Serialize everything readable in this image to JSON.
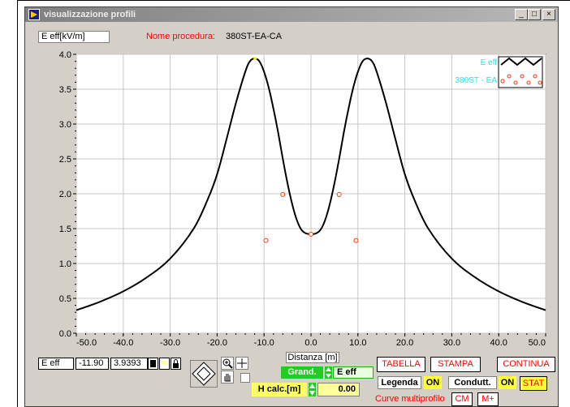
{
  "window": {
    "title": "visualizzazione profili",
    "min_label": "_",
    "max_label": "□",
    "close_label": "×"
  },
  "header": {
    "y_unit_label": "E eff[kV/m]",
    "procedure_label": "Nome procedura:",
    "procedure_value": "380ST-EA-CA"
  },
  "legend": {
    "entries": [
      "E eff",
      "380ST - EA"
    ]
  },
  "chart_data": {
    "type": "scatter",
    "xlabel": "Distanza [m]",
    "ylabel": "E eff[kV/m]",
    "xlim": [
      -50,
      50
    ],
    "ylim": [
      0,
      4
    ],
    "x_ticks": [
      "-50.0",
      "-40.0",
      "-30.0",
      "-20.0",
      "-10.0",
      "0.0",
      "10.0",
      "20.0",
      "30.0",
      "40.0",
      "50.0"
    ],
    "y_ticks": [
      "0.0",
      "0.5",
      "1.0",
      "1.5",
      "2.0",
      "2.5",
      "3.0",
      "3.5",
      "4.0"
    ],
    "grid": true,
    "series": [
      {
        "name": "E eff",
        "style": "line",
        "color": "#000000",
        "x": [
          -50,
          -45,
          -40,
          -35,
          -30,
          -25,
          -22,
          -20,
          -18,
          -16,
          -14,
          -13,
          -12,
          -11,
          -10,
          -9,
          -8,
          -7,
          -6,
          -5,
          -4,
          -3,
          -2,
          -1,
          0,
          1,
          2,
          3,
          4,
          5,
          6,
          7,
          8,
          9,
          10,
          11,
          12,
          13,
          14,
          16,
          18,
          20,
          22,
          25,
          30,
          35,
          40,
          45,
          50
        ],
        "y": [
          0.33,
          0.45,
          0.6,
          0.8,
          1.07,
          1.5,
          1.92,
          2.28,
          2.78,
          3.3,
          3.75,
          3.9,
          3.94,
          3.9,
          3.75,
          3.52,
          3.22,
          2.88,
          2.5,
          2.15,
          1.85,
          1.62,
          1.48,
          1.43,
          1.42,
          1.43,
          1.48,
          1.62,
          1.85,
          2.15,
          2.5,
          2.88,
          3.22,
          3.52,
          3.75,
          3.9,
          3.94,
          3.9,
          3.75,
          3.3,
          2.78,
          2.28,
          1.92,
          1.5,
          1.07,
          0.8,
          0.6,
          0.45,
          0.33
        ]
      },
      {
        "name": "380ST - EA",
        "style": "markers",
        "color": "#ff3300",
        "x": [
          -6.0,
          6.0,
          -9.6,
          9.6,
          0.0
        ],
        "y": [
          1.99,
          1.99,
          1.33,
          1.33,
          1.42
        ]
      }
    ],
    "cursor_point": {
      "x": -11.9,
      "y": 3.9393
    }
  },
  "cursor": {
    "name": "E eff",
    "x": "-11.90",
    "y": "3.9393"
  },
  "controls": {
    "distance_label": "Distanza [m]",
    "grand_label": "Grand.",
    "grand_value": "E eff",
    "hcalc_label": "H calc.[m]",
    "hcalc_value": "0.00"
  },
  "buttons": {
    "tabella": "TABELLA",
    "stampa": "STAMPA",
    "continua": "CONTINUA",
    "legenda": "Legenda",
    "legenda_state": "ON",
    "condutt": "Condutt.",
    "condutt_state": "ON",
    "stat": "STAT",
    "multi_label": "Curve multiprofilo",
    "cm": "CM",
    "mplus": "M+"
  }
}
